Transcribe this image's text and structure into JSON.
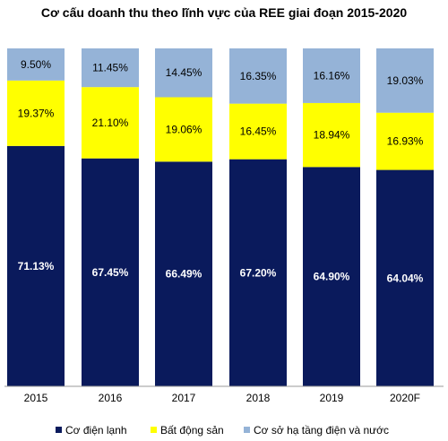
{
  "chart_data": {
    "type": "bar",
    "stacked": true,
    "title": "Cơ cấu doanh thu theo lĩnh vực của REE giai đoạn 2015-2020",
    "categories": [
      "2015",
      "2016",
      "2017",
      "2018",
      "2019",
      "2020F"
    ],
    "series": [
      {
        "name": "Cơ điện lạnh",
        "color": "#0a1a5c",
        "values": [
          71.13,
          67.45,
          66.49,
          67.2,
          64.9,
          64.04
        ],
        "labels": [
          "71.13%",
          "67.45%",
          "66.49%",
          "67.20%",
          "64.90%",
          "64.04%"
        ],
        "label_color": "#ffffff"
      },
      {
        "name": "Bất động sản",
        "color": "#ffff00",
        "values": [
          19.37,
          21.1,
          19.06,
          16.45,
          18.94,
          16.93
        ],
        "labels": [
          "19.37%",
          "21.10%",
          "19.06%",
          "16.45%",
          "18.94%",
          "16.93%"
        ],
        "label_color": "#000000"
      },
      {
        "name": "Cơ sở hạ tầng điện và nước",
        "color": "#95b3d7",
        "values": [
          9.5,
          11.45,
          14.45,
          16.35,
          16.16,
          19.03
        ],
        "labels": [
          "9.50%",
          "11.45%",
          "14.45%",
          "16.35%",
          "16.16%",
          "19.03%"
        ],
        "label_color": "#000000"
      }
    ],
    "ylim": [
      0,
      100
    ],
    "grid": false,
    "legend_position": "bottom"
  }
}
